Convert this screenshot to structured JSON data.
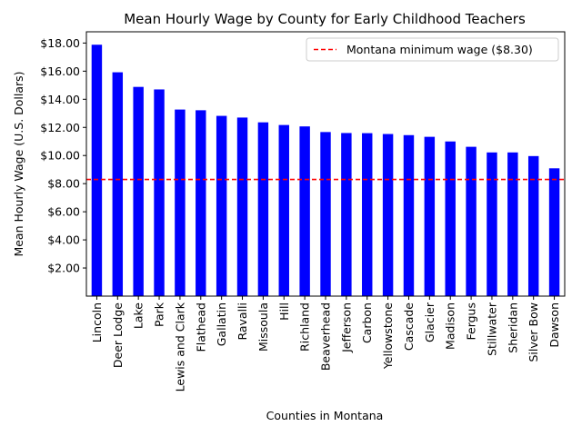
{
  "chart_data": {
    "type": "bar",
    "title": "Mean Hourly Wage by County for Early Childhood Teachers",
    "xlabel": "Counties in Montana",
    "ylabel": "Mean Hourly Wage (U.S. Dollars)",
    "categories": [
      "Lincoln",
      "Deer Lodge",
      "Lake",
      "Park",
      "Lewis and Clark",
      "Flathead",
      "Gallatin",
      "Ravalli",
      "Missoula",
      "Hill",
      "Richland",
      "Beaverhead",
      "Jefferson",
      "Carbon",
      "Yellowstone",
      "Cascade",
      "Glacier",
      "Madison",
      "Fergus",
      "Stillwater",
      "Sheridan",
      "Silver Bow",
      "Dawson"
    ],
    "values": [
      17.88,
      15.92,
      14.88,
      14.7,
      13.27,
      13.22,
      12.82,
      12.7,
      12.36,
      12.17,
      12.07,
      11.67,
      11.6,
      11.59,
      11.53,
      11.45,
      11.33,
      11.0,
      10.62,
      10.22,
      10.22,
      9.96,
      9.09
    ],
    "ylim": [
      0,
      18.8
    ],
    "yticks": [
      2,
      4,
      6,
      8,
      10,
      12,
      14,
      16,
      18
    ],
    "ytick_labels": [
      "$2.00",
      "$4.00",
      "$6.00",
      "$8.00",
      "$10.00",
      "$12.00",
      "$14.00",
      "$16.00",
      "$18.00"
    ],
    "bar_color": "#0000ff",
    "reference_line": {
      "value": 8.3,
      "label": "Montana minimum wage ($8.30)",
      "color": "#ff0000",
      "style": "dashed"
    },
    "legend": "top-right",
    "grid": false
  }
}
